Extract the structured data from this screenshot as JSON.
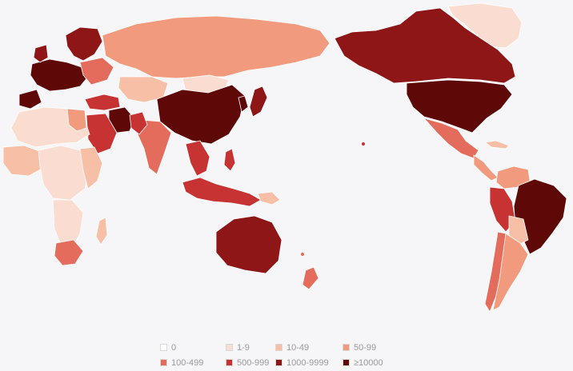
{
  "map": {
    "colors": {
      "c0": "#ffffff",
      "c1": "#fbdcd0",
      "c2": "#f7bfa6",
      "c3": "#f19a7d",
      "c4": "#e46c5c",
      "c5": "#c73232",
      "c6": "#8e1616",
      "c7": "#5e0808"
    },
    "background": "#f6f6f8"
  },
  "legend": {
    "items": [
      {
        "label": "0",
        "color": "#ffffff"
      },
      {
        "label": "1-9",
        "color": "#fbdcd0"
      },
      {
        "label": "10-49",
        "color": "#f7bfa6"
      },
      {
        "label": "50-99",
        "color": "#f19a7d"
      },
      {
        "label": "100-499",
        "color": "#e46c5c"
      },
      {
        "label": "500-999",
        "color": "#c73232"
      },
      {
        "label": "1000-9999",
        "color": "#8e1616"
      },
      {
        "label": "≥10000",
        "color": "#5e0808"
      }
    ]
  }
}
